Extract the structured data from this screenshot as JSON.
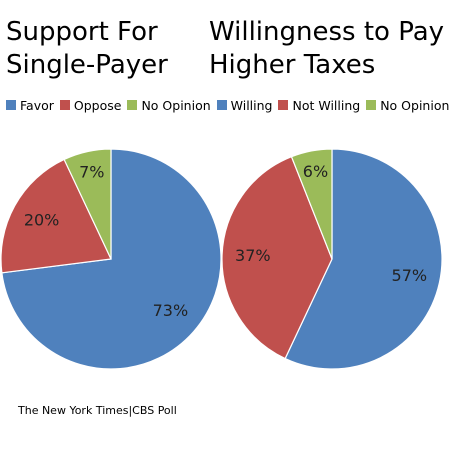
{
  "chart_data": [
    {
      "type": "pie",
      "title_lines": [
        "Support For",
        "Single-Payer"
      ],
      "categories": [
        "Favor",
        "Oppose",
        "No Opinion"
      ],
      "values": [
        73,
        20,
        7
      ],
      "value_labels": [
        "73%",
        "20%",
        "7%"
      ],
      "colors": [
        "#4f81bd",
        "#c0504d",
        "#9bbb59"
      ]
    },
    {
      "type": "pie",
      "title_lines": [
        "Willingness to Pay",
        "Higher Taxes"
      ],
      "categories": [
        "Willing",
        "Not Willing",
        "No Opinion"
      ],
      "values": [
        57,
        37,
        6
      ],
      "value_labels": [
        "57%",
        "37%",
        "6%"
      ],
      "colors": [
        "#4f81bd",
        "#c0504d",
        "#9bbb59"
      ]
    }
  ],
  "legend_placement": "top",
  "source": "The New York Times|CBS Poll"
}
